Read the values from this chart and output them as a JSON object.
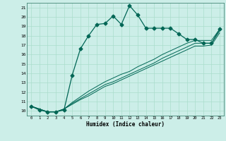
{
  "title": "",
  "xlabel": "Humidex (Indice chaleur)",
  "ylabel": "",
  "bg_color": "#cceee8",
  "grid_color": "#aaddcc",
  "line_color": "#006655",
  "x_data": [
    0,
    1,
    2,
    3,
    4,
    5,
    6,
    7,
    8,
    9,
    10,
    11,
    12,
    13,
    14,
    15,
    16,
    17,
    18,
    19,
    20,
    21,
    22,
    23
  ],
  "y_main": [
    10.5,
    10.1,
    9.9,
    9.9,
    10.1,
    13.8,
    16.6,
    18.0,
    19.2,
    19.3,
    20.1,
    19.2,
    21.2,
    20.2,
    18.8,
    18.8,
    18.8,
    18.8,
    18.2,
    17.6,
    17.6,
    17.2,
    17.2,
    18.7
  ],
  "y_line1": [
    10.5,
    10.2,
    9.9,
    9.9,
    10.2,
    10.9,
    11.5,
    12.1,
    12.6,
    13.1,
    13.5,
    13.9,
    14.2,
    14.7,
    15.1,
    15.5,
    16.0,
    16.4,
    16.8,
    17.2,
    17.5,
    17.5,
    17.5,
    18.7
  ],
  "y_line2": [
    10.5,
    10.2,
    9.9,
    9.9,
    10.2,
    10.8,
    11.3,
    11.8,
    12.3,
    12.8,
    13.1,
    13.5,
    13.9,
    14.3,
    14.7,
    15.1,
    15.6,
    16.0,
    16.4,
    16.8,
    17.2,
    17.2,
    17.2,
    18.5
  ],
  "y_line3": [
    10.5,
    10.2,
    9.9,
    9.9,
    10.2,
    10.7,
    11.2,
    11.6,
    12.1,
    12.6,
    12.9,
    13.3,
    13.7,
    14.1,
    14.5,
    14.9,
    15.3,
    15.7,
    16.1,
    16.5,
    16.9,
    16.9,
    17.0,
    18.3
  ],
  "xlim": [
    -0.5,
    23.5
  ],
  "ylim": [
    9.5,
    21.5
  ],
  "yticks": [
    10,
    11,
    12,
    13,
    14,
    15,
    16,
    17,
    18,
    19,
    20,
    21
  ],
  "xticks": [
    0,
    1,
    2,
    3,
    4,
    5,
    6,
    7,
    8,
    9,
    10,
    11,
    12,
    13,
    14,
    15,
    16,
    17,
    18,
    19,
    20,
    21,
    22,
    23
  ],
  "marker_size": 2.5,
  "lw_main": 0.9,
  "lw_secondary": 0.7
}
